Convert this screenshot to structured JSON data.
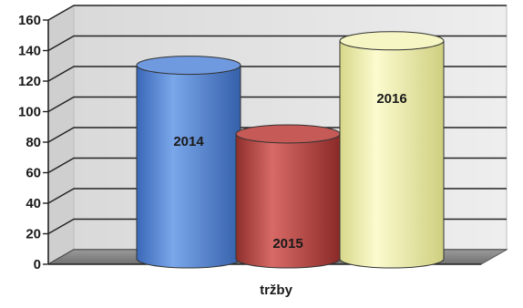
{
  "chart_data": {
    "type": "bar",
    "style": "3d-cylinder",
    "title": "",
    "xlabel": "tržby",
    "ylabel": "",
    "ylim": [
      0,
      160
    ],
    "ytick_step": 20,
    "yticks": [
      "0",
      "20",
      "40",
      "60",
      "80",
      "100",
      "120",
      "140",
      "160"
    ],
    "grid": true,
    "legend": "none",
    "categories": [
      "2014",
      "2015",
      "2016"
    ],
    "values": [
      128,
      83,
      144
    ],
    "colors": [
      "#5b8ad6",
      "#c0504d",
      "#f0f0a8"
    ]
  }
}
